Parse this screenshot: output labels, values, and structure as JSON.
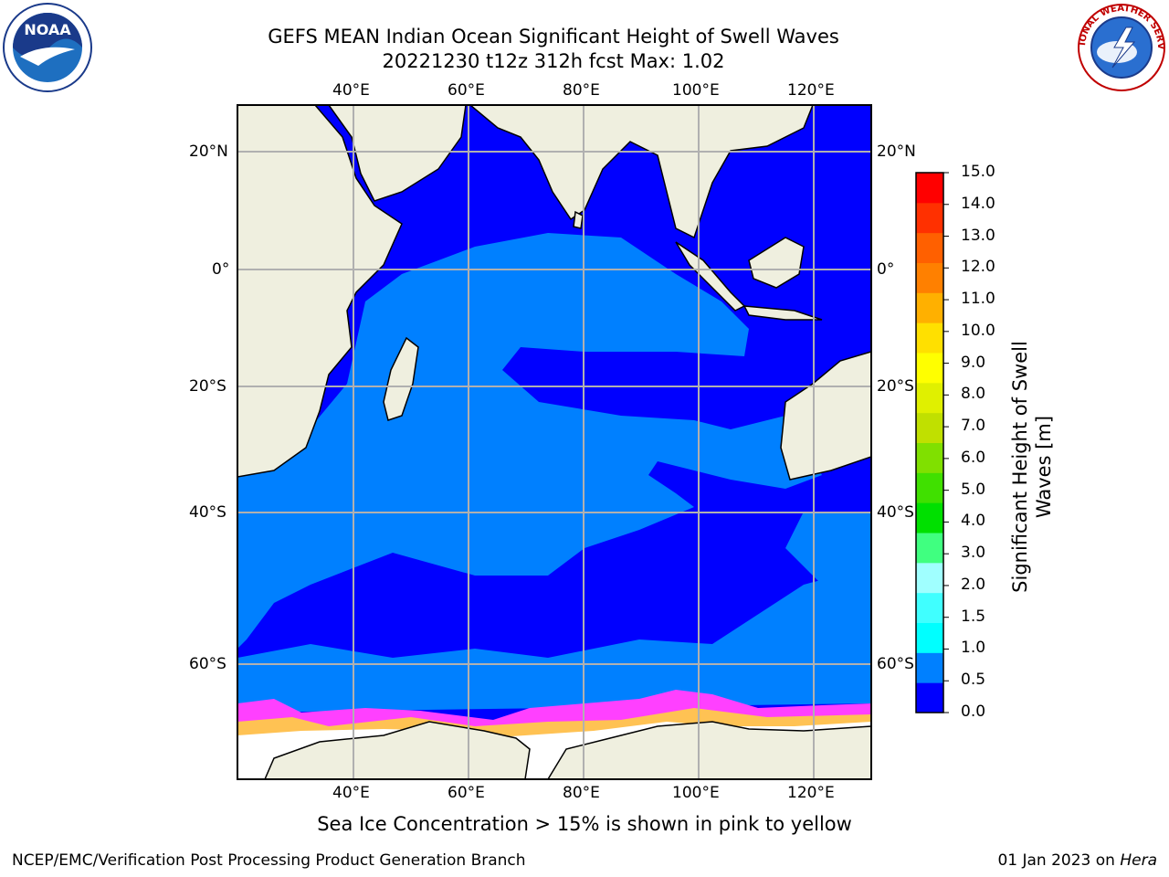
{
  "title_line1": "GEFS MEAN Indian Ocean Significant Height of Swell Waves",
  "title_line2": "20221230 t12z 312h fcst   Max: 1.02",
  "subtitle": "Sea Ice Concentration > 15% is shown in pink to yellow",
  "footer_left": "NCEP/EMC/Verification Post Processing Product Generation Branch",
  "footer_date": "01 Jan 2023 on ",
  "footer_machine": "Hera",
  "logos": {
    "left": "NOAA",
    "right": "NATIONAL WEATHER SERVICE"
  },
  "map": {
    "lon_labels_top": [
      "40°E",
      "60°E",
      "80°E",
      "100°E",
      "120°E"
    ],
    "lon_labels_bottom": [
      "40°E",
      "60°E",
      "80°E",
      "100°E",
      "120°E"
    ],
    "lat_labels_left": [
      "20°N",
      "0°",
      "20°S",
      "40°S",
      "60°S"
    ],
    "lat_labels_right": [
      "20°N",
      "0°",
      "20°S",
      "40°S",
      "60°S"
    ],
    "colors": {
      "land": "#efefdf",
      "low_swell": "#0000ff",
      "mid_swell": "#0080ff",
      "ice": "#ffffff",
      "ice_edge": "#ff40ff",
      "grid": "#b0b0b0"
    }
  },
  "colorbar": {
    "title_line1": "Significant Height of Swell",
    "title_line2": "Waves [m]",
    "ticks": [
      "15.0",
      "14.0",
      "13.0",
      "12.0",
      "11.0",
      "10.0",
      "9.0",
      "8.0",
      "7.0",
      "6.0",
      "5.0",
      "4.0",
      "3.0",
      "2.0",
      "1.5",
      "1.0",
      "0.5",
      "0.0"
    ],
    "colors": [
      "#0000ff",
      "#0080ff",
      "#00ffff",
      "#40ffff",
      "#a0ffff",
      "#40ff80",
      "#00e000",
      "#40e000",
      "#80e000",
      "#c0e000",
      "#e0f000",
      "#ffff00",
      "#ffe000",
      "#ffb000",
      "#ff8000",
      "#ff6000",
      "#ff3000",
      "#ff0000"
    ]
  }
}
